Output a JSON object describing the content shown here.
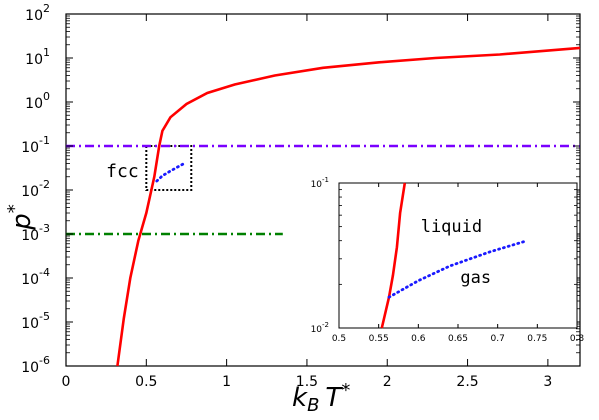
{
  "chart_data": [
    {
      "type": "line",
      "xlabel": "k_B T*",
      "ylabel": "p*",
      "xlim": [
        0,
        3.2
      ],
      "ylim_log10": [
        -6,
        2
      ],
      "yscale": "log",
      "x_ticks": [
        "0",
        "0.5",
        "1",
        "1.5",
        "2",
        "2.5",
        "3"
      ],
      "x_tick_values": [
        0,
        0.5,
        1,
        1.5,
        2,
        2.5,
        3
      ],
      "y_ticks": [
        {
          "base": "10",
          "exp": "-6",
          "log": -6
        },
        {
          "base": "10",
          "exp": "-5",
          "log": -5
        },
        {
          "base": "10",
          "exp": "-4",
          "log": -4
        },
        {
          "base": "10",
          "exp": "-3",
          "log": -3
        },
        {
          "base": "10",
          "exp": "-2",
          "log": -2
        },
        {
          "base": "10",
          "exp": "-1",
          "log": -1
        },
        {
          "base": "10",
          "exp": "0",
          "log": 0
        },
        {
          "base": "10",
          "exp": "1",
          "log": 1
        },
        {
          "base": "10",
          "exp": "2",
          "log": 2
        }
      ],
      "annotations": [
        {
          "text": "fcc",
          "x": 0.25,
          "y": 0.02
        }
      ],
      "series": [
        {
          "style": "solid",
          "color": "#ff0000",
          "x": [
            0.32,
            0.36,
            0.4,
            0.45,
            0.5,
            0.55,
            0.58,
            0.6,
            0.65,
            0.75,
            0.88,
            1.05,
            1.3,
            1.6,
            1.95,
            2.3,
            2.7,
            3.2
          ],
          "y": [
            1e-06,
            1.2e-05,
            0.0001,
            0.0007,
            0.003,
            0.02,
            0.1,
            0.22,
            0.45,
            0.9,
            1.6,
            2.5,
            4.0,
            6.0,
            8.0,
            10.0,
            12.0,
            17.0
          ]
        },
        {
          "style": "dotted",
          "color": "#1a1aff",
          "x": [
            0.565,
            0.6,
            0.65,
            0.7,
            0.735
          ],
          "y": [
            0.016,
            0.021,
            0.027,
            0.034,
            0.04
          ]
        },
        {
          "style": "dash-dot",
          "color": "#7a00ff",
          "x": [
            0,
            3.2
          ],
          "y": [
            0.1,
            0.1
          ]
        },
        {
          "style": "dash-dot",
          "color": "#008000",
          "x": [
            0,
            1.35
          ],
          "y": [
            0.001,
            0.001
          ]
        }
      ],
      "zoom_box": {
        "x": [
          0.5,
          0.78
        ],
        "y": [
          0.01,
          0.1
        ],
        "style": "dotted",
        "color": "#000000"
      }
    },
    {
      "type": "line",
      "role": "inset",
      "xlim": [
        0.5,
        0.8
      ],
      "ylim_log10": [
        -2,
        -1
      ],
      "yscale": "log",
      "x_ticks": [
        "0.5",
        "0.55",
        "0.6",
        "0.65",
        "0.7",
        "0.75",
        "0.8"
      ],
      "x_tick_values": [
        0.5,
        0.55,
        0.6,
        0.65,
        0.7,
        0.75,
        0.8
      ],
      "y_ticks": [
        {
          "base": "10",
          "exp": "-2",
          "log": -2
        },
        {
          "base": "10",
          "exp": "-1",
          "log": -1
        }
      ],
      "annotations": [
        {
          "text": "liquid",
          "x": 0.603,
          "y": 0.046
        },
        {
          "text": "gas",
          "x": 0.653,
          "y": 0.0205
        }
      ],
      "series": [
        {
          "style": "solid",
          "color": "#ff0000",
          "x": [
            0.554,
            0.563,
            0.568,
            0.573,
            0.577,
            0.583
          ],
          "y": [
            0.01,
            0.0163,
            0.023,
            0.036,
            0.062,
            0.1
          ]
        },
        {
          "style": "dotted",
          "color": "#1a1aff",
          "x": [
            0.563,
            0.6,
            0.64,
            0.69,
            0.737
          ],
          "y": [
            0.0163,
            0.0212,
            0.0268,
            0.0335,
            0.04
          ]
        }
      ]
    }
  ]
}
